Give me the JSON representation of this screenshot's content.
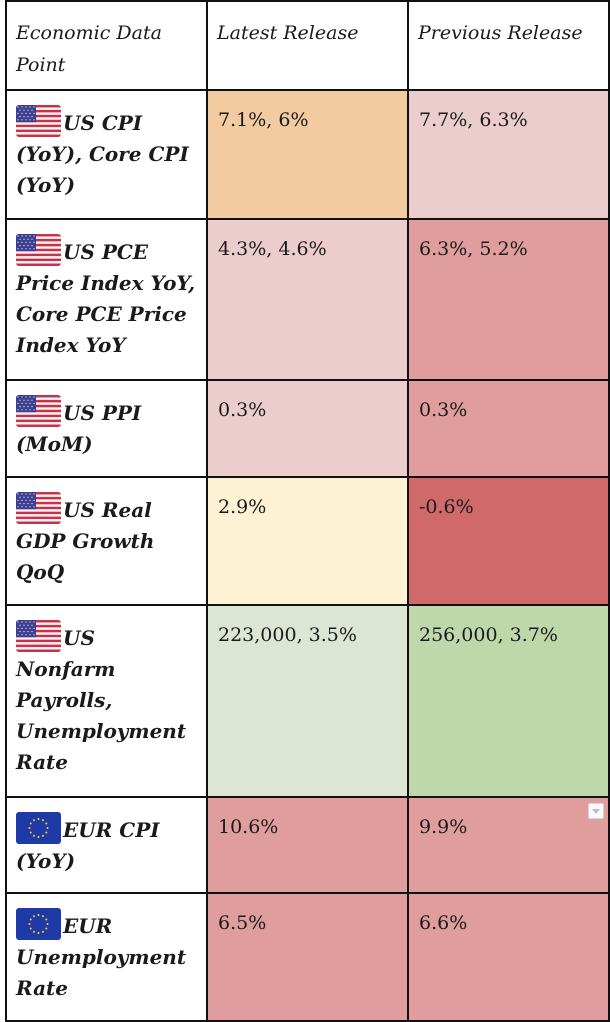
{
  "table": {
    "headers": {
      "col1": "Economic Data Point",
      "col2": "Latest Release",
      "col3": "Previous Release"
    },
    "rows": [
      {
        "name": "US CPI (YoY), Core CPI (YoY)",
        "flag": "us-flag-icon",
        "latest": "7.1%, 6%",
        "previous": "7.7%, 6.3%",
        "latest_color": "#f2cba0",
        "previous_color": "#eccdcd"
      },
      {
        "name": "US PCE Price Index YoY, Core PCE Price Index YoY",
        "flag": "us-flag-icon",
        "latest": "4.3%, 4.6%",
        "previous": "6.3%, 5.2%",
        "latest_color": "#eccdcd",
        "previous_color": "#e09d9d"
      },
      {
        "name": "US PPI (MoM)",
        "flag": "us-flag-icon",
        "latest": "0.3%",
        "previous": "0.3%",
        "latest_color": "#eccdcd",
        "previous_color": "#e09d9d"
      },
      {
        "name": "US Real GDP Growth QoQ",
        "flag": "us-flag-icon",
        "latest": "2.9%",
        "previous": "-0.6%",
        "latest_color": "#fdf2d3",
        "previous_color": "#d06a6a"
      },
      {
        "name": "US Nonfarm Payrolls, Unemployment Rate",
        "flag": "us-flag-icon",
        "latest": "223,000, 3.5%",
        "previous": "256,000, 3.7%",
        "latest_color": "#dde6d4",
        "previous_color": "#bed7ab"
      },
      {
        "name": "EUR CPI (YoY)",
        "flag": "eu-flag-icon",
        "latest": "10.6%",
        "previous": "9.9%",
        "latest_color": "#e09d9d",
        "previous_color": "#e09d9d"
      },
      {
        "name": "EUR Unemployment Rate",
        "flag": "eu-flag-icon",
        "latest": "6.5%",
        "previous": "6.6%",
        "latest_color": "#e09d9d",
        "previous_color": "#e09d9d"
      }
    ]
  }
}
